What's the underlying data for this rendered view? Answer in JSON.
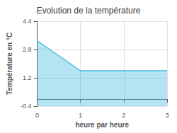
{
  "chart_data": {
    "type": "area",
    "title": "Evolution de la température",
    "xlabel": "heure par heure",
    "ylabel": "Température en °C",
    "x": [
      0,
      1,
      3
    ],
    "values": [
      3.3,
      1.6,
      1.6
    ],
    "color": "#44bbdd",
    "xlim": [
      0,
      3
    ],
    "xticks": [
      0,
      1,
      2,
      3
    ],
    "ylim": [
      -0.4,
      4.4
    ],
    "yticks": [
      -0.4,
      1.2,
      2.8,
      4.4
    ],
    "grid": true
  }
}
